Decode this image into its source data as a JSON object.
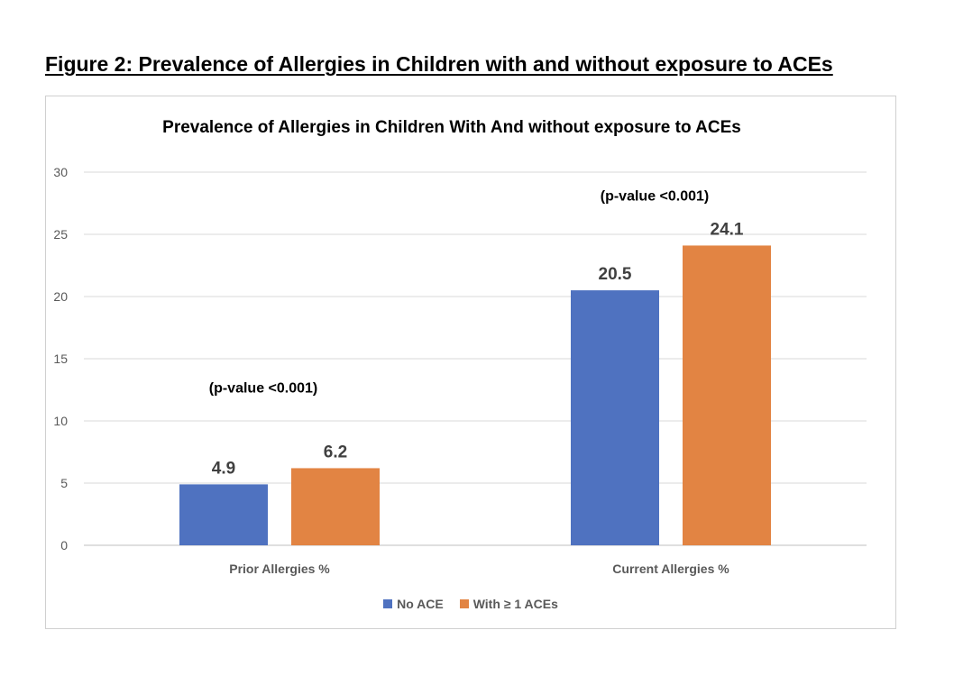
{
  "figure": {
    "caption": "Figure 2: Prevalence of Allergies in Children with and without exposure to ACEs"
  },
  "chart_data": {
    "type": "bar",
    "title": "Prevalence of Allergies in Children With And without exposure to ACEs",
    "xlabel": "",
    "ylabel": "",
    "categories": [
      "Prior Allergies %",
      "Current Allergies %"
    ],
    "series": [
      {
        "name": "No ACE",
        "values": [
          4.9,
          20.5
        ],
        "color": "#4f72c0"
      },
      {
        "name": "With ≥ 1 ACEs",
        "values": [
          6.2,
          24.1
        ],
        "color": "#e28443"
      }
    ],
    "annotations": [
      "(p-value <0.001)",
      "(p-value <0.001)"
    ],
    "ylim": [
      0,
      30
    ],
    "yticks": [
      0,
      5,
      10,
      15,
      20,
      25,
      30
    ],
    "grid": true,
    "legend": "bottom"
  }
}
